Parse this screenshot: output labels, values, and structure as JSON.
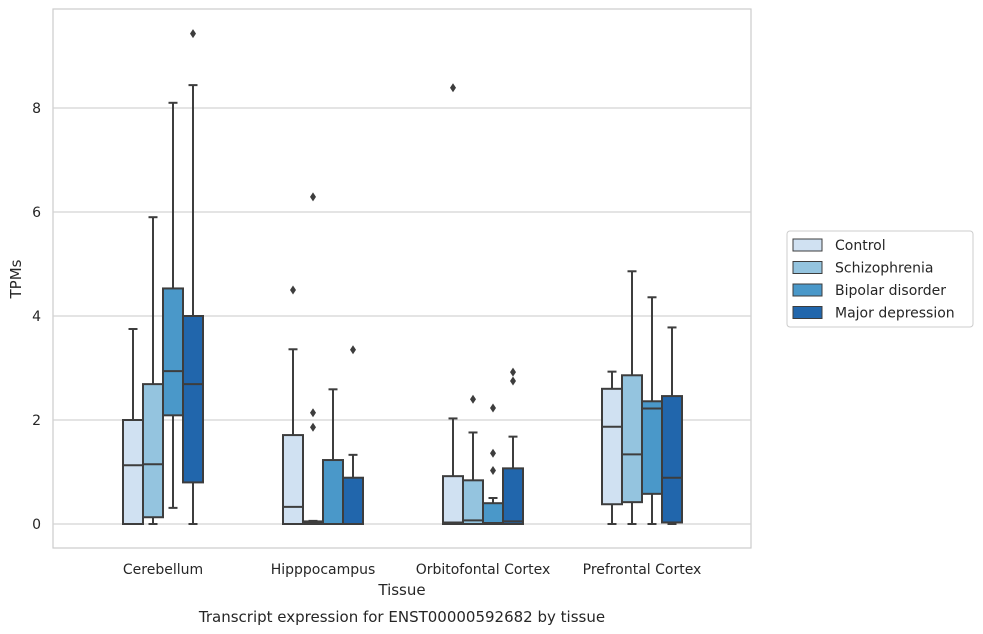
{
  "chart_data": {
    "type": "box",
    "caption": "Transcript expression for ENST00000592682 by tissue",
    "xlabel": "Tissue",
    "ylabel": "TPMs",
    "ylim": [
      -0.45,
      9.85
    ],
    "yticks": [
      0,
      2,
      4,
      6,
      8
    ],
    "grid": "horizontal",
    "legend_position": "right",
    "categories": [
      "Cerebellum",
      "Hipppocampus",
      "Orbitofontal Cortex",
      "Prefrontal Cortex"
    ],
    "series": [
      {
        "name": "Control",
        "color": "#d0e1f2",
        "boxes": [
          {
            "whisker_low": 0,
            "q1": 0,
            "median": 1.13,
            "q3": 2.0,
            "whisker_high": 3.75,
            "outliers": []
          },
          {
            "whisker_low": 0,
            "q1": 0,
            "median": 0.33,
            "q3": 1.71,
            "whisker_high": 3.36,
            "outliers": [
              4.5
            ]
          },
          {
            "whisker_low": 0,
            "q1": 0,
            "median": 0.03,
            "q3": 0.92,
            "whisker_high": 2.03,
            "outliers": [
              8.39
            ]
          },
          {
            "whisker_low": 0,
            "q1": 0.38,
            "median": 1.87,
            "q3": 2.6,
            "whisker_high": 2.93,
            "outliers": []
          }
        ]
      },
      {
        "name": "Schizophrenia",
        "color": "#94c4df",
        "boxes": [
          {
            "whisker_low": 0,
            "q1": 0.13,
            "median": 1.15,
            "q3": 2.69,
            "whisker_high": 5.9,
            "outliers": []
          },
          {
            "whisker_low": 0,
            "q1": 0,
            "median": 0.02,
            "q3": 0.05,
            "whisker_high": 0.06,
            "outliers": [
              1.86,
              2.14,
              6.29
            ]
          },
          {
            "whisker_low": 0,
            "q1": 0,
            "median": 0.07,
            "q3": 0.84,
            "whisker_high": 1.76,
            "outliers": [
              2.4
            ]
          },
          {
            "whisker_low": 0,
            "q1": 0.42,
            "median": 1.34,
            "q3": 2.86,
            "whisker_high": 4.86,
            "outliers": []
          }
        ]
      },
      {
        "name": "Bipolar disorder",
        "color": "#4a98c9",
        "boxes": [
          {
            "whisker_low": 0.31,
            "q1": 2.09,
            "median": 2.94,
            "q3": 4.53,
            "whisker_high": 8.1,
            "outliers": []
          },
          {
            "whisker_low": 0,
            "q1": 0,
            "median": 0.0,
            "q3": 1.23,
            "whisker_high": 2.59,
            "outliers": []
          },
          {
            "whisker_low": 0,
            "q1": 0,
            "median": 0.02,
            "q3": 0.4,
            "whisker_high": 0.5,
            "outliers": [
              1.03,
              1.36,
              2.23
            ]
          },
          {
            "whisker_low": 0,
            "q1": 0.58,
            "median": 2.22,
            "q3": 2.36,
            "whisker_high": 4.36,
            "outliers": []
          }
        ]
      },
      {
        "name": "Major depression",
        "color": "#2166ac",
        "boxes": [
          {
            "whisker_low": 0,
            "q1": 0.8,
            "median": 2.69,
            "q3": 4.0,
            "whisker_high": 8.44,
            "outliers": [
              9.43
            ]
          },
          {
            "whisker_low": 0,
            "q1": 0,
            "median": 0.0,
            "q3": 0.89,
            "whisker_high": 1.33,
            "outliers": [
              3.35
            ]
          },
          {
            "whisker_low": 0,
            "q1": 0,
            "median": 0.05,
            "q3": 1.07,
            "whisker_high": 1.68,
            "outliers": [
              2.75,
              2.92
            ]
          },
          {
            "whisker_low": 0,
            "q1": 0.03,
            "median": 0.89,
            "q3": 2.46,
            "whisker_high": 3.78,
            "outliers": []
          }
        ]
      }
    ]
  }
}
